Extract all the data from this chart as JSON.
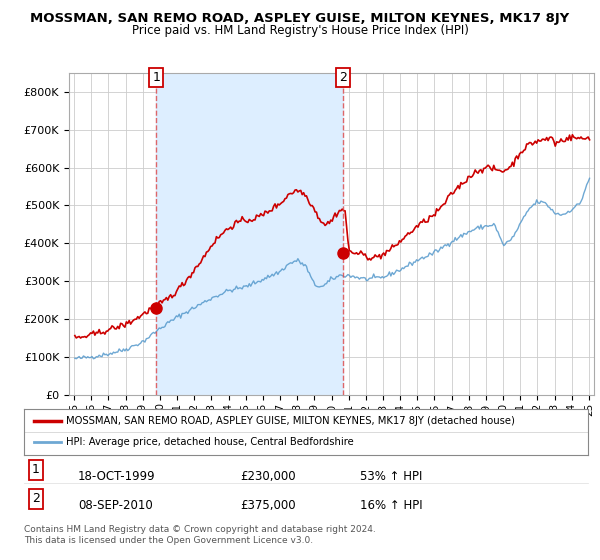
{
  "title": "MOSSMAN, SAN REMO ROAD, ASPLEY GUISE, MILTON KEYNES, MK17 8JY",
  "subtitle": "Price paid vs. HM Land Registry's House Price Index (HPI)",
  "legend_line1": "MOSSMAN, SAN REMO ROAD, ASPLEY GUISE, MILTON KEYNES, MK17 8JY (detached house)",
  "legend_line2": "HPI: Average price, detached house, Central Bedfordshire",
  "annotation1_label": "1",
  "annotation1_date": "18-OCT-1999",
  "annotation1_price": "£230,000",
  "annotation1_pct": "53% ↑ HPI",
  "annotation2_label": "2",
  "annotation2_date": "08-SEP-2010",
  "annotation2_price": "£375,000",
  "annotation2_pct": "16% ↑ HPI",
  "footnote": "Contains HM Land Registry data © Crown copyright and database right 2024.\nThis data is licensed under the Open Government Licence v3.0.",
  "ylim": [
    0,
    850000
  ],
  "yticks": [
    0,
    100000,
    200000,
    300000,
    400000,
    500000,
    600000,
    700000,
    800000
  ],
  "ytick_labels": [
    "£0",
    "£100K",
    "£200K",
    "£300K",
    "£400K",
    "£500K",
    "£600K",
    "£700K",
    "£800K"
  ],
  "red_color": "#cc0000",
  "blue_color": "#5599cc",
  "shade_color": "#ddeeff",
  "vline_color": "#dd4444",
  "grid_color": "#cccccc",
  "bg_color": "#ffffff",
  "marker1_x": 1999.79,
  "marker1_y": 230000,
  "marker2_x": 2010.67,
  "marker2_y": 375000,
  "sale1_x": 1999.79,
  "sale2_x": 2010.67,
  "xmin": 1994.7,
  "xmax": 2025.3
}
